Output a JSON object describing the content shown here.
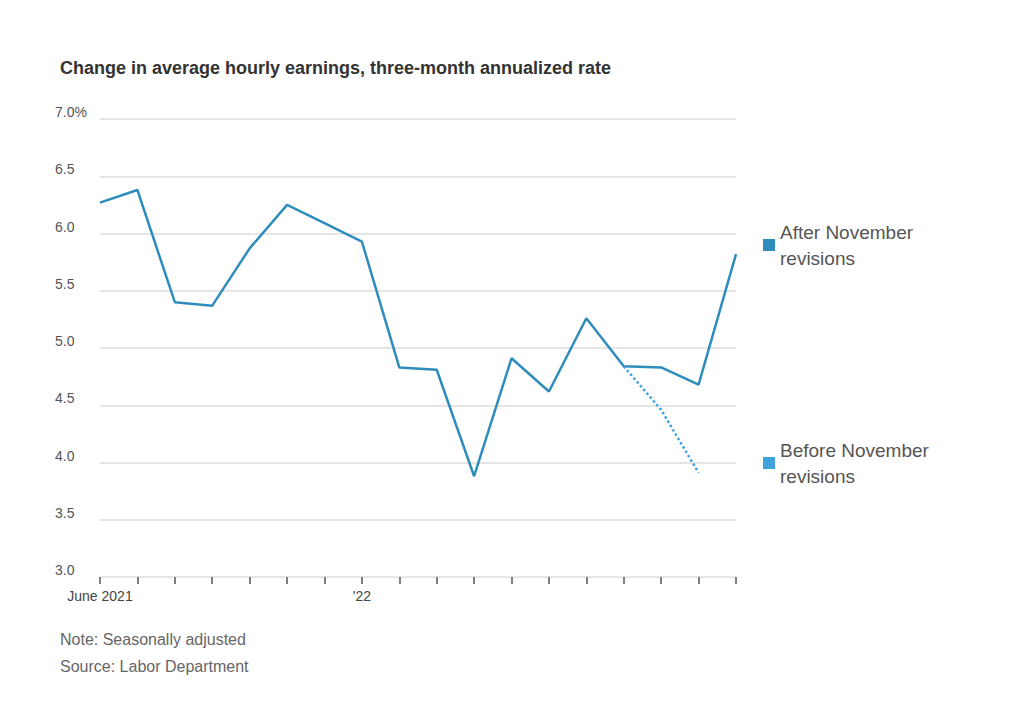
{
  "chart_data": {
    "type": "line",
    "title": "Change in average hourly earnings, three-month annualized rate",
    "note": "Note: Seasonally adjusted",
    "source": "Source: Labor Department",
    "categories": [
      "June 2021",
      null,
      null,
      null,
      null,
      null,
      null,
      "'22",
      null,
      null,
      null,
      null,
      null,
      null,
      null,
      null,
      null,
      null
    ],
    "series": [
      {
        "name": "After November revisions",
        "color": "#2f8dbb",
        "line_style": "solid",
        "values": [
          6.27,
          6.38,
          5.4,
          5.37,
          5.87,
          6.25,
          6.09,
          5.93,
          4.83,
          4.81,
          3.88,
          4.91,
          4.62,
          5.26,
          4.84,
          4.83,
          4.68,
          5.82
        ]
      },
      {
        "name": "Before November revisions",
        "color": "#3fa2dd",
        "line_style": "dotted",
        "values": [
          null,
          null,
          null,
          null,
          null,
          null,
          null,
          null,
          null,
          null,
          null,
          null,
          null,
          null,
          4.84,
          4.46,
          3.91,
          null
        ]
      }
    ],
    "ylim": [
      3,
      7
    ],
    "yticks": [
      {
        "value": 3,
        "label": "3.0"
      },
      3.5,
      {
        "value": 4,
        "label": "4.0"
      },
      4.5,
      {
        "value": 5,
        "label": "5.0"
      },
      5.5,
      {
        "value": 6,
        "label": "6.0"
      },
      6.5,
      {
        "value": 7,
        "label": "7.0%"
      }
    ],
    "grid": true,
    "legend": "right"
  }
}
